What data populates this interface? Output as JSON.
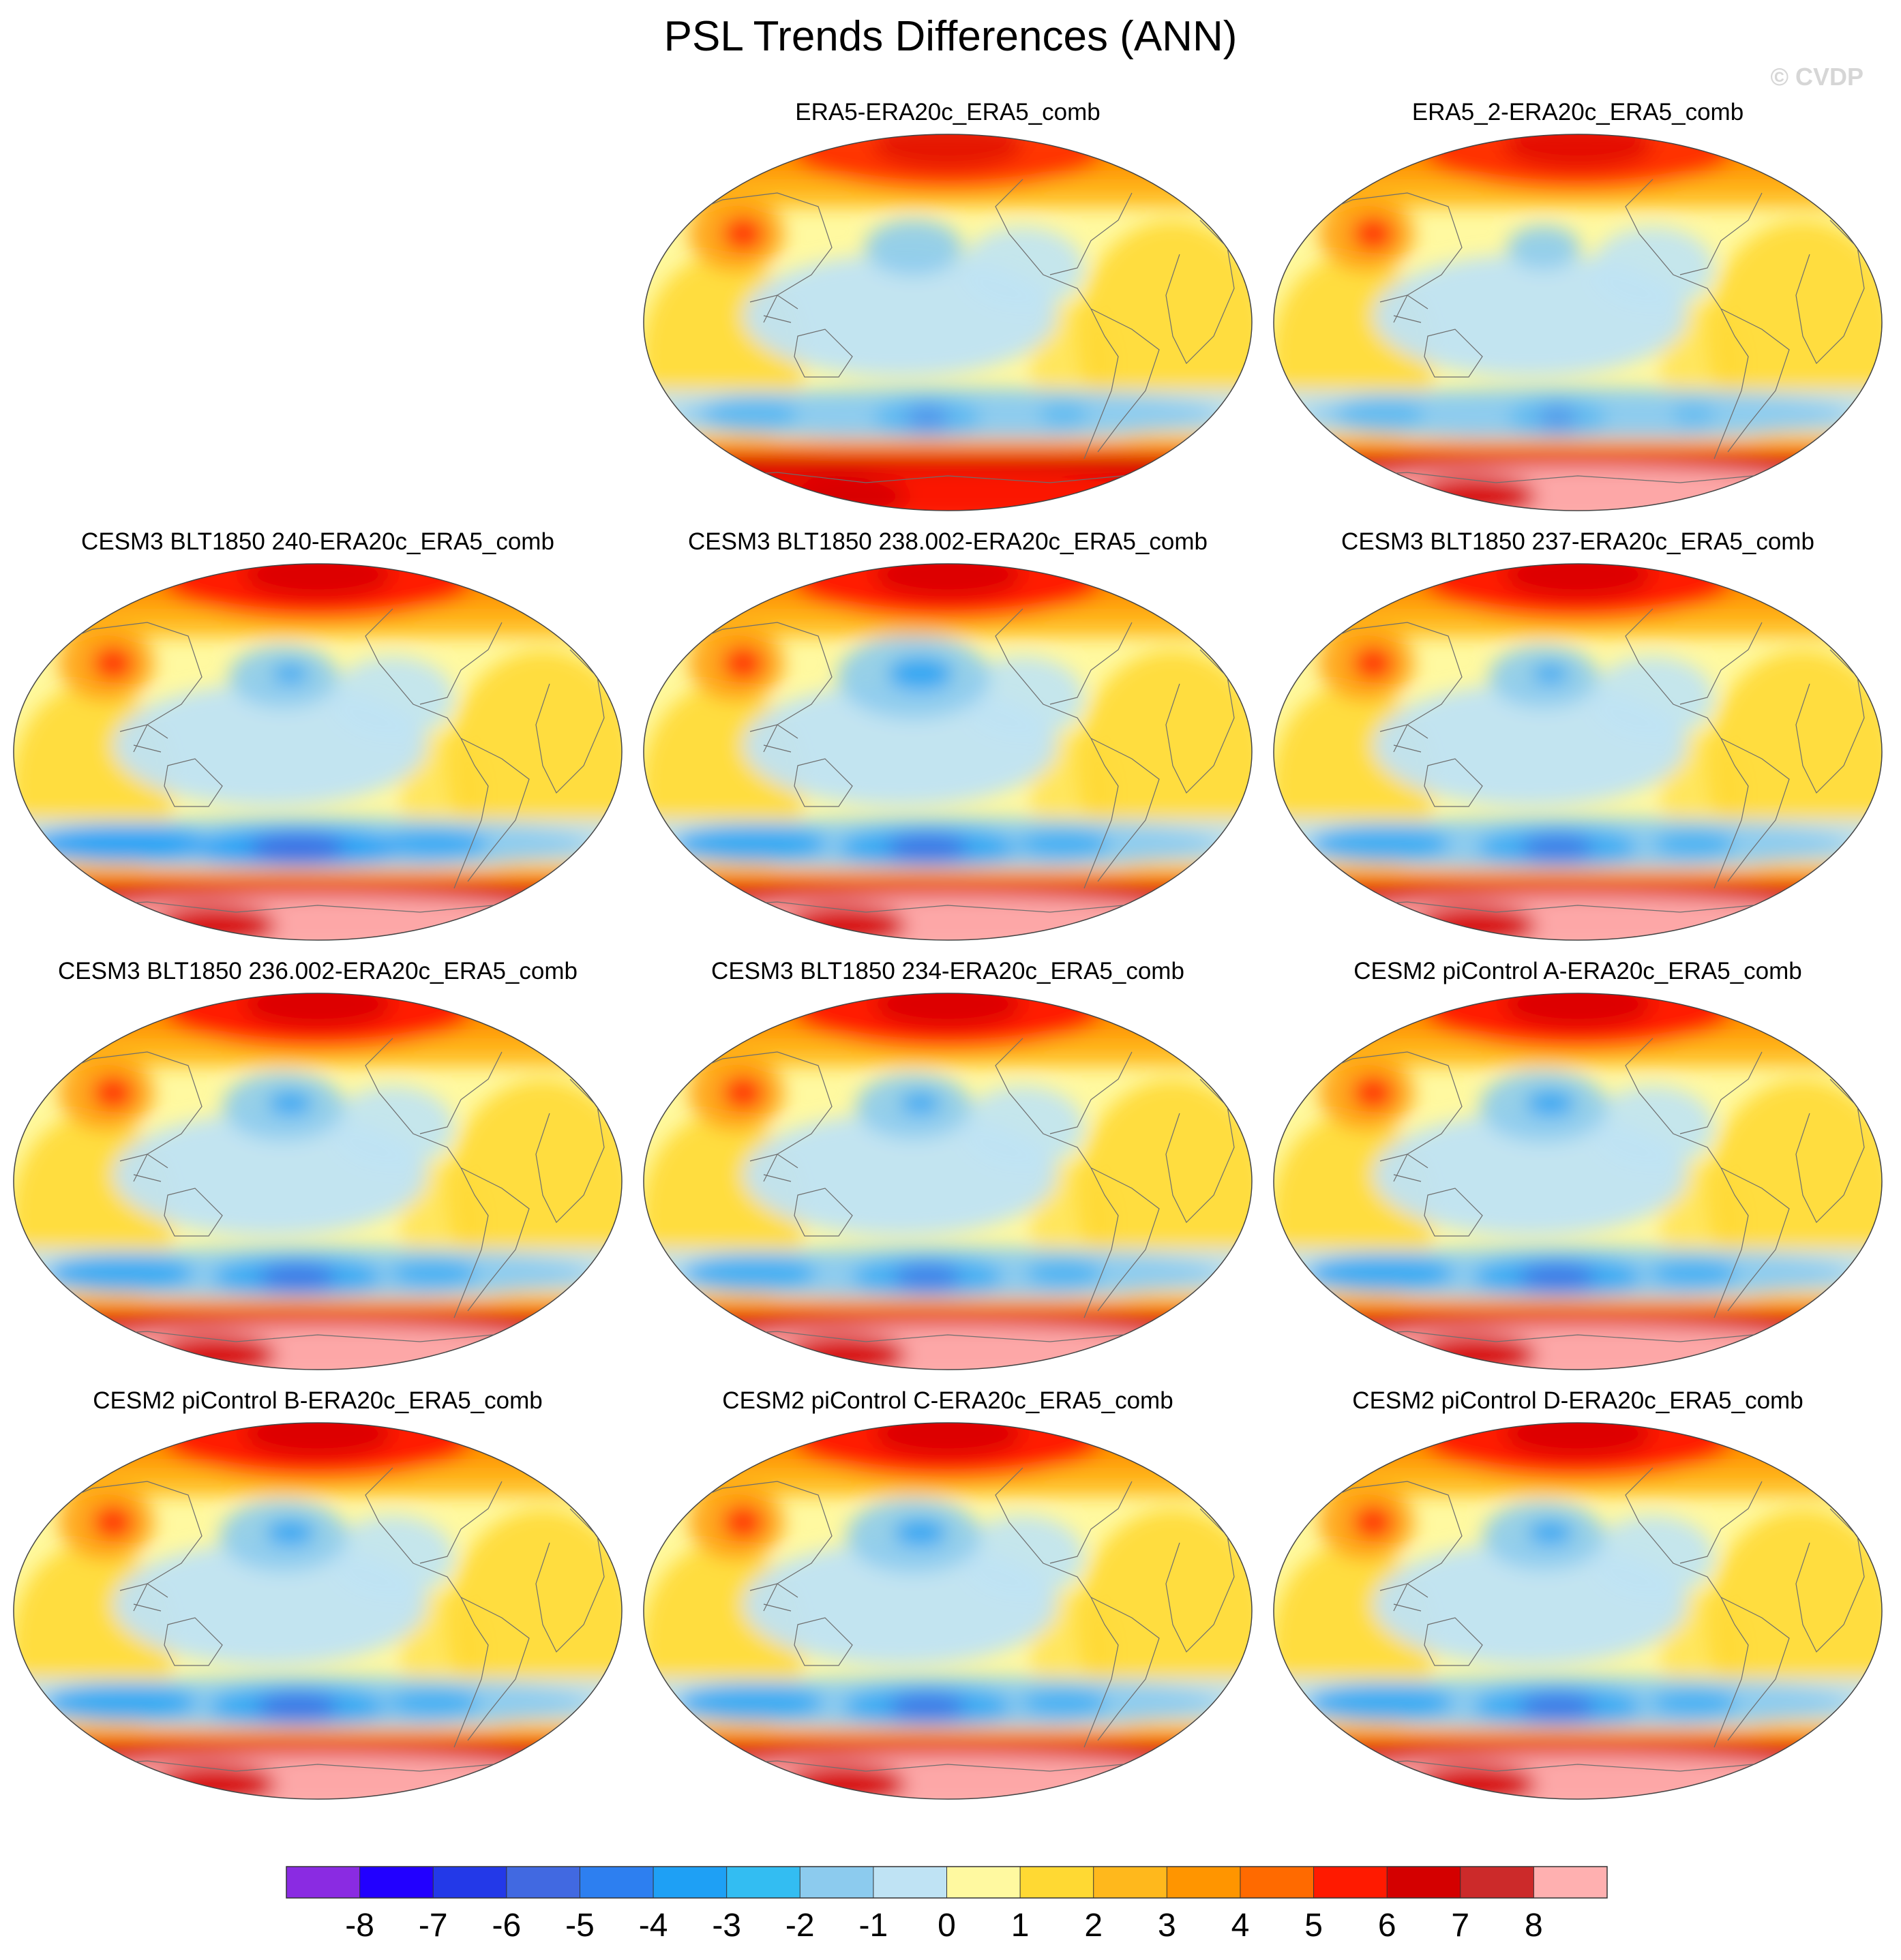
{
  "title": "PSL Trends Differences (ANN)",
  "credit": "© CVDP",
  "chart_data": {
    "type": "heatmap",
    "title": "PSL Trends Differences (ANN)",
    "projection": "robinson-like global map",
    "panels": [
      {
        "title": "ERA5-ERA20c_ERA5_comb",
        "polar_intensity": 0.75,
        "south_pole_pink": false,
        "so_trough": 0.45,
        "pac_low": 0.35
      },
      {
        "title": "ERA5_2-ERA20c_ERA5_comb",
        "polar_intensity": 0.8,
        "south_pole_pink": true,
        "so_trough": 0.4,
        "pac_low": 0.15
      },
      {
        "title": "CESM3 BLT1850 240-ERA20c_ERA5_comb",
        "polar_intensity": 1.0,
        "south_pole_pink": true,
        "so_trough": 1.0,
        "pac_low": 0.45
      },
      {
        "title": "CESM3 BLT1850 238.002-ERA20c_ERA5_comb",
        "polar_intensity": 1.0,
        "south_pole_pink": true,
        "so_trough": 0.85,
        "pac_low": 0.8
      },
      {
        "title": "CESM3 BLT1850 237-ERA20c_ERA5_comb",
        "polar_intensity": 1.0,
        "south_pole_pink": true,
        "so_trough": 0.75,
        "pac_low": 0.45
      },
      {
        "title": "CESM3 BLT1850 236.002-ERA20c_ERA5_comb",
        "polar_intensity": 1.0,
        "south_pole_pink": true,
        "so_trough": 0.8,
        "pac_low": 0.55
      },
      {
        "title": "CESM3 BLT1850 234-ERA20c_ERA5_comb",
        "polar_intensity": 1.0,
        "south_pole_pink": true,
        "so_trough": 0.7,
        "pac_low": 0.5
      },
      {
        "title": "CESM2 piControl A-ERA20c_ERA5_comb",
        "polar_intensity": 1.0,
        "south_pole_pink": true,
        "so_trough": 0.8,
        "pac_low": 0.6
      },
      {
        "title": "CESM2 piControl B-ERA20c_ERA5_comb",
        "polar_intensity": 1.0,
        "south_pole_pink": true,
        "so_trough": 0.85,
        "pac_low": 0.6
      },
      {
        "title": "CESM2 piControl C-ERA20c_ERA5_comb",
        "polar_intensity": 1.0,
        "south_pole_pink": true,
        "so_trough": 0.8,
        "pac_low": 0.65
      },
      {
        "title": "CESM2 piControl D-ERA20c_ERA5_comb",
        "polar_intensity": 1.0,
        "south_pole_pink": true,
        "so_trough": 0.8,
        "pac_low": 0.55
      }
    ],
    "colorbar": {
      "levels": [
        "-8",
        "-7",
        "-6",
        "-5",
        "-4",
        "-3",
        "-2",
        "-1",
        "0",
        "1",
        "2",
        "3",
        "4",
        "5",
        "6",
        "7",
        "8"
      ],
      "colors": [
        "#8a2be2",
        "#2200ff",
        "#2339e8",
        "#4169e1",
        "#2d7ff0",
        "#1ea0f5",
        "#33bdf2",
        "#8ccbee",
        "#bfe3f4",
        "#fff9a0",
        "#ffd933",
        "#ffb81c",
        "#ff9500",
        "#ff6a00",
        "#ff1a00",
        "#d40000",
        "#cc2a2a",
        "#ffb0b0"
      ]
    }
  }
}
